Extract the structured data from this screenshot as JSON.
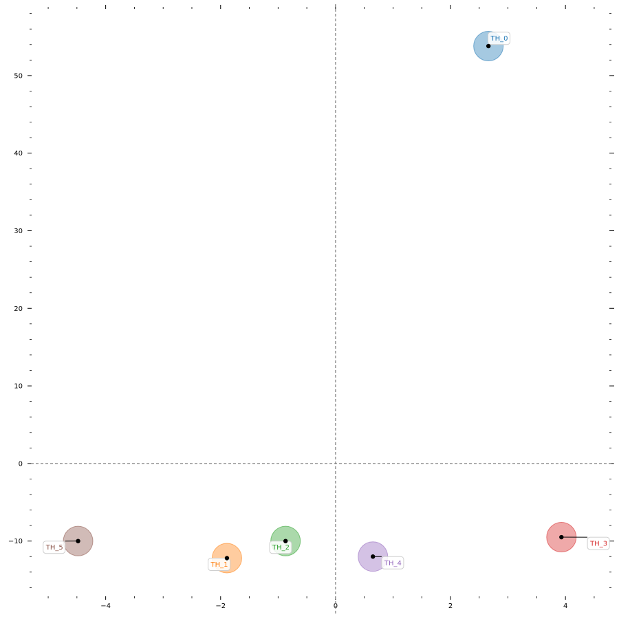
{
  "chart_data": {
    "type": "scatter",
    "title": "",
    "xlabel": "",
    "ylabel": "",
    "xlim": [
      -5.3,
      4.8
    ],
    "ylim": [
      -16.5,
      58.5
    ],
    "grid": false,
    "reference_lines": {
      "x": 0,
      "y": 0,
      "style": "dashed",
      "color": "#808080"
    },
    "x_major_ticks": [
      -4,
      -2,
      0,
      2,
      4
    ],
    "x_tick_labels": [
      "−4",
      "−2",
      "0",
      "2",
      "4"
    ],
    "y_major_ticks": [
      -10,
      0,
      10,
      20,
      30,
      40,
      50
    ],
    "y_tick_labels": [
      "−10",
      "0",
      "10",
      "20",
      "30",
      "40",
      "50"
    ],
    "x_minor_ticks": [
      -5,
      -4.5,
      -3.5,
      -3,
      -2.5,
      -1.5,
      -1,
      -0.5,
      0.5,
      1,
      1.5,
      2.5,
      3,
      3.5,
      4.5
    ],
    "y_minor_ticks": [
      -16,
      -14,
      -12,
      -8,
      -6,
      -4,
      -2,
      2,
      4,
      6,
      8,
      12,
      14,
      16,
      18,
      22,
      24,
      26,
      28,
      32,
      34,
      36,
      38,
      42,
      44,
      46,
      48,
      52,
      54,
      56,
      58
    ],
    "points": [
      {
        "label": "TH_0",
        "x": 2.66,
        "y": 53.8,
        "color": "#1f77b4",
        "label_dx": 0.04,
        "label_dy": 1.0
      },
      {
        "label": "TH_1",
        "x": -1.89,
        "y": -12.2,
        "color": "#ff7f0e",
        "label_dx": -0.28,
        "label_dy": -0.8
      },
      {
        "label": "TH_2",
        "x": -0.87,
        "y": -10.0,
        "color": "#2ca02c",
        "label_dx": -0.23,
        "label_dy": -0.8
      },
      {
        "label": "TH_3",
        "x": 3.93,
        "y": -9.5,
        "color": "#d62728",
        "label_dx": 0.5,
        "label_dy": -0.8
      },
      {
        "label": "TH_4",
        "x": 0.65,
        "y": -12.0,
        "color": "#9467bd",
        "label_dx": 0.2,
        "label_dy": -0.8
      },
      {
        "label": "TH_5",
        "x": -4.48,
        "y": -10.0,
        "color": "#8c564b",
        "label_dx": -0.56,
        "label_dy": -0.8
      }
    ]
  }
}
